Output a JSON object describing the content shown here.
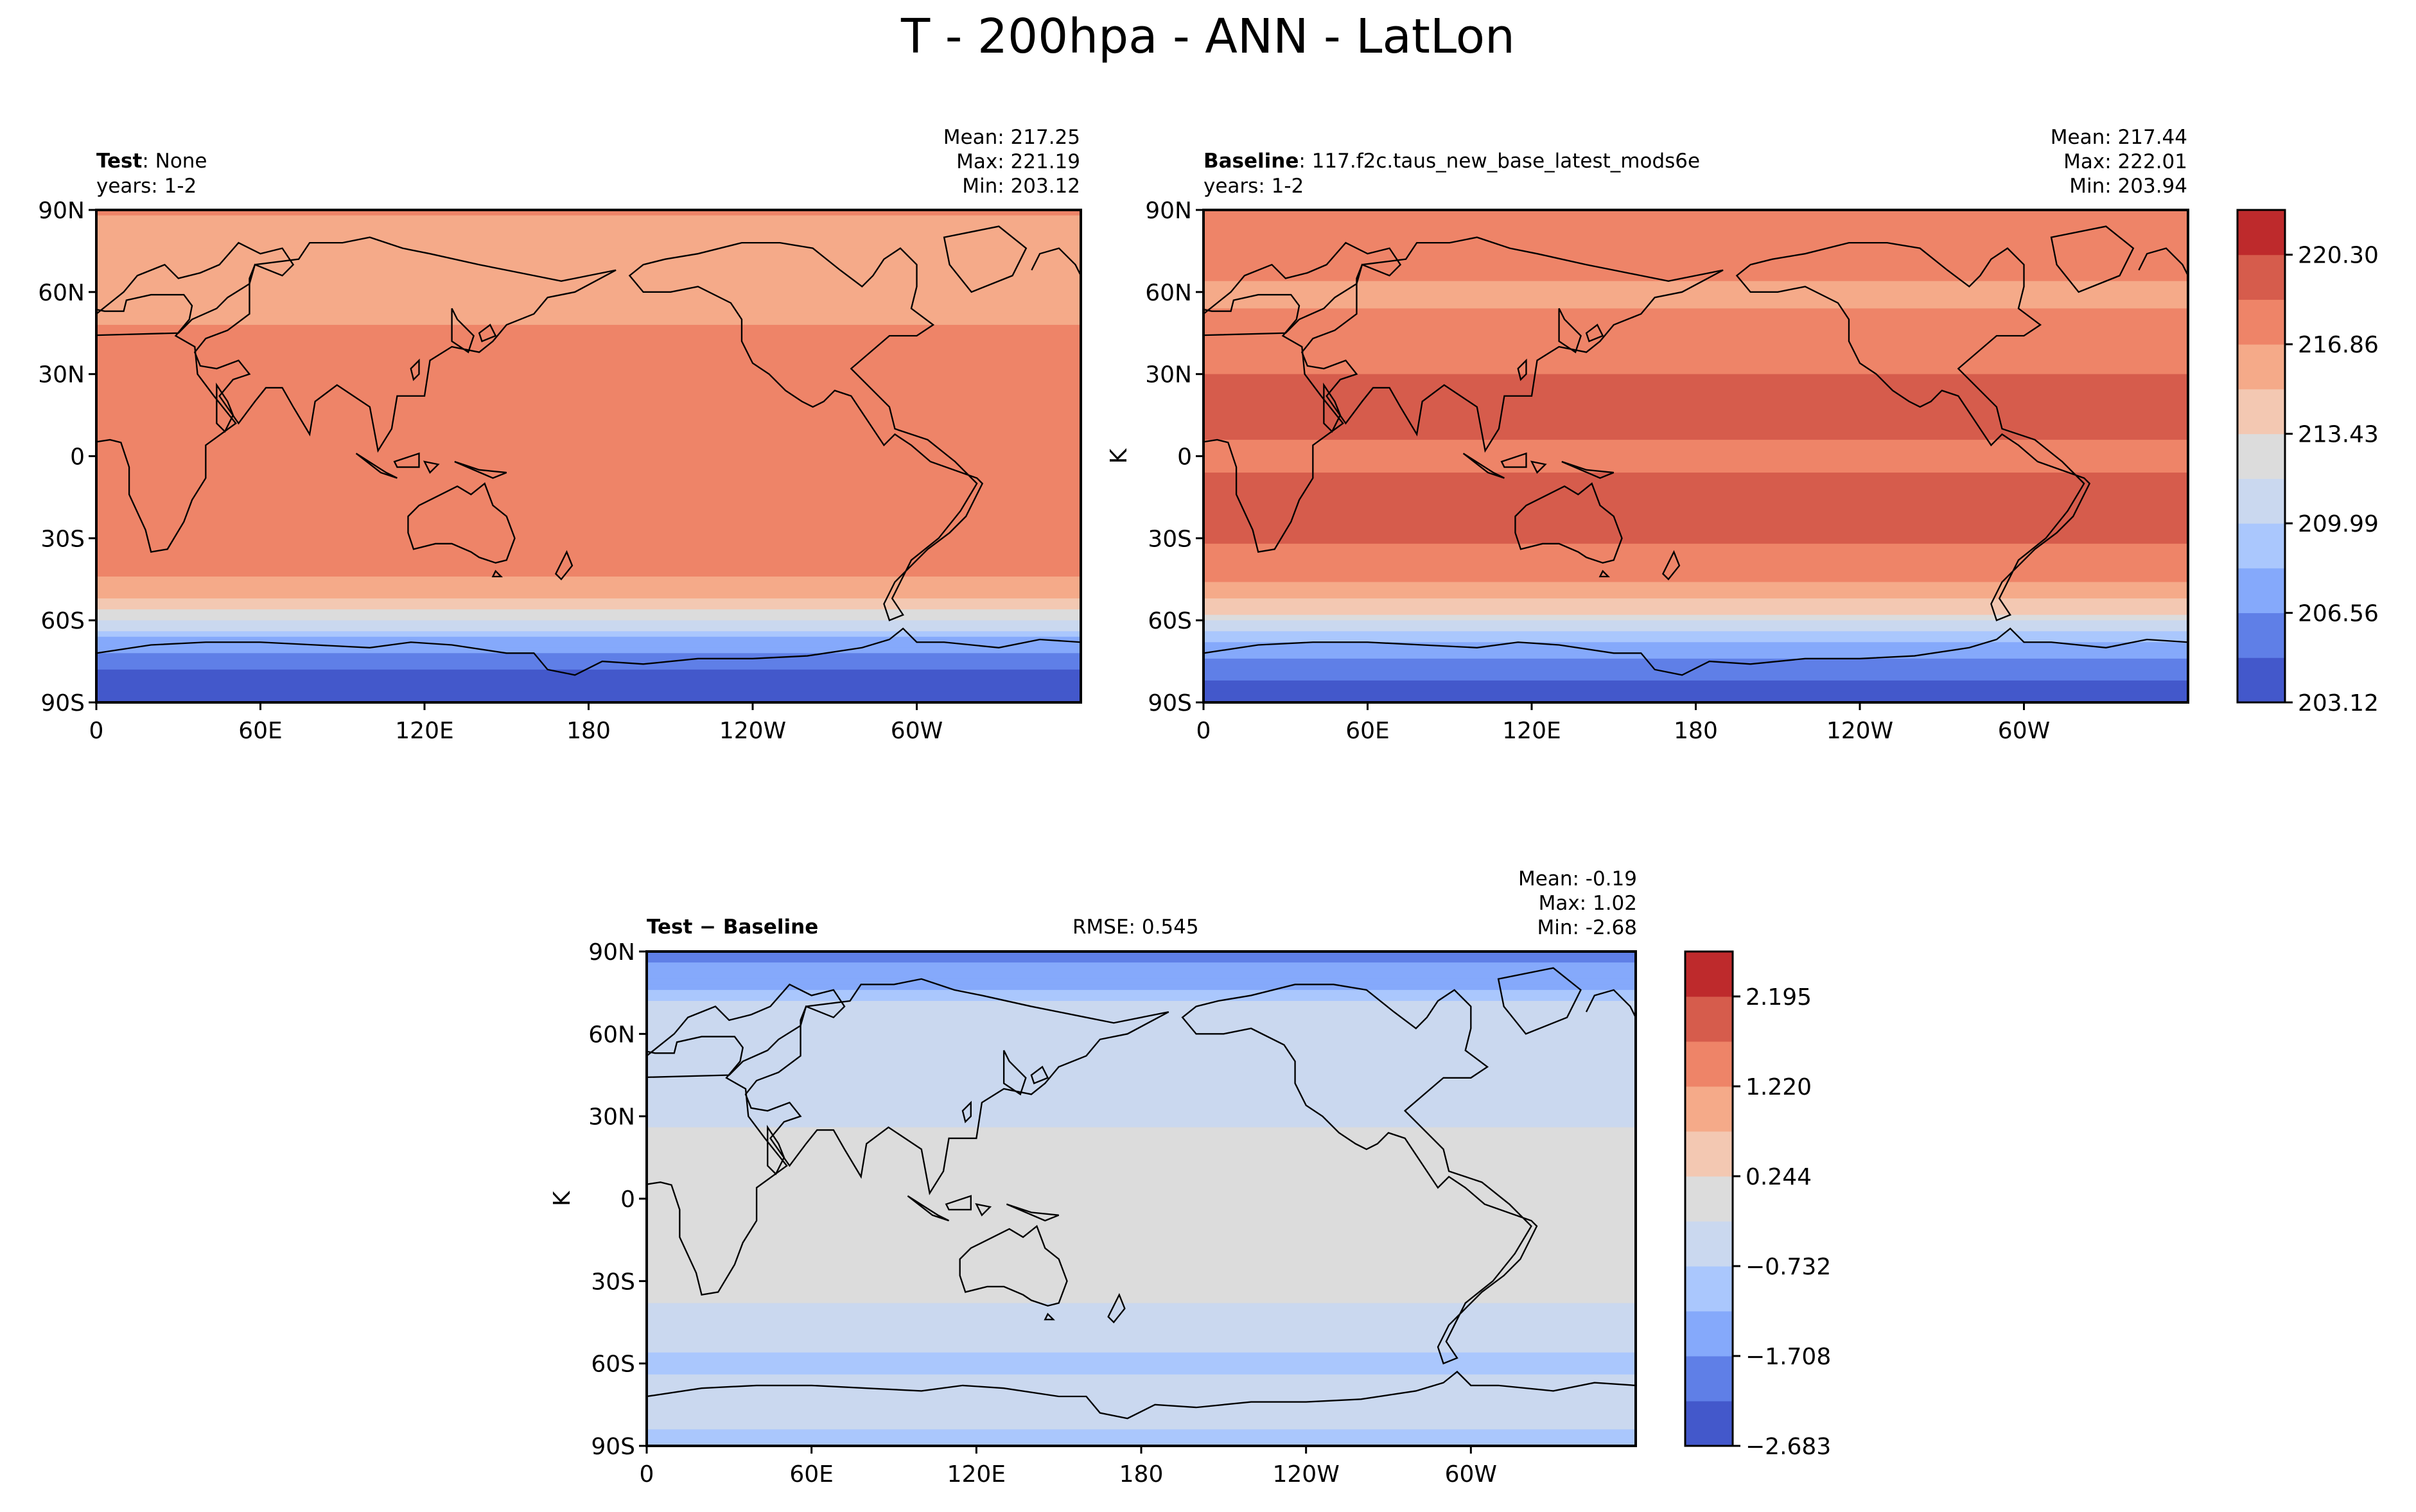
{
  "suptitle": "T - 200hpa - ANN - LatLon",
  "palette": [
    "#4358cb",
    "#5f7fe7",
    "#85a9fb",
    "#aac7fd",
    "#cad8ef",
    "#dcdcdc",
    "#f3c8b2",
    "#f5aa89",
    "#ee8468",
    "#d65c4c",
    "#be2a2c"
  ],
  "panels": {
    "test": {
      "title_bold": "Test",
      "title_rest": ": None",
      "years": "years: 1-2",
      "mean": "Mean: 217.25",
      "max": "Max: 221.19",
      "min": "Min: 203.12"
    },
    "baseline": {
      "title_bold": "Baseline",
      "title_rest": ": 117.f2c.taus_new_base_latest_mods6e",
      "years": "years: 1-2",
      "mean": "Mean: 217.44",
      "max": "Max: 222.01",
      "min": "Min: 203.94"
    },
    "diff": {
      "title_bold": "Test − Baseline",
      "rmse": "RMSE: 0.545",
      "mean": "Mean: -0.19",
      "max": "Max:  1.02",
      "min": "Min: -2.68"
    }
  },
  "chart_data": [
    {
      "type": "heatmap",
      "name": "Test",
      "xlabel": "",
      "ylabel": "",
      "x_tick_labels": [
        "0",
        "60E",
        "120E",
        "180",
        "120W",
        "60W"
      ],
      "y_tick_labels": [
        "90N",
        "60N",
        "30N",
        "0",
        "30S",
        "60S",
        "90S"
      ],
      "xlim": [
        0,
        360
      ],
      "ylim": [
        -90,
        90
      ],
      "shared_colorbar": "abs",
      "zonal_profile": [
        {
          "lat": 90,
          "value": 216.9
        },
        {
          "lat": 75,
          "value": 216.6
        },
        {
          "lat": 60,
          "value": 216.2
        },
        {
          "lat": 45,
          "value": 217.0
        },
        {
          "lat": 30,
          "value": 218.3
        },
        {
          "lat": 15,
          "value": 218.5
        },
        {
          "lat": 0,
          "value": 218.3
        },
        {
          "lat": -15,
          "value": 218.4
        },
        {
          "lat": -30,
          "value": 218.5
        },
        {
          "lat": -45,
          "value": 216.8
        },
        {
          "lat": -55,
          "value": 214.3
        },
        {
          "lat": -60,
          "value": 211.5
        },
        {
          "lat": -65,
          "value": 209.0
        },
        {
          "lat": -70,
          "value": 206.8
        },
        {
          "lat": -80,
          "value": 204.5
        },
        {
          "lat": -90,
          "value": 203.5
        }
      ]
    },
    {
      "type": "heatmap",
      "name": "Baseline",
      "xlabel": "",
      "ylabel": "K",
      "x_tick_labels": [
        "0",
        "60E",
        "120E",
        "180",
        "120W",
        "60W"
      ],
      "y_tick_labels": [
        "90N",
        "60N",
        "30N",
        "0",
        "30S",
        "60S",
        "90S"
      ],
      "xlim": [
        0,
        360
      ],
      "ylim": [
        -90,
        90
      ],
      "colorbar": {
        "levels": [
          203.12,
          204.84,
          206.56,
          208.27,
          209.99,
          211.71,
          213.43,
          215.15,
          216.86,
          218.58,
          220.3,
          222.02
        ],
        "tick_labels": [
          "203.12",
          "206.56",
          "209.99",
          "213.43",
          "216.86",
          "220.30"
        ]
      },
      "zonal_profile": [
        {
          "lat": 90,
          "value": 218.6
        },
        {
          "lat": 75,
          "value": 217.7
        },
        {
          "lat": 60,
          "value": 216.5
        },
        {
          "lat": 45,
          "value": 217.3
        },
        {
          "lat": 30,
          "value": 218.6
        },
        {
          "lat": 15,
          "value": 218.7
        },
        {
          "lat": 0,
          "value": 218.5
        },
        {
          "lat": -15,
          "value": 218.7
        },
        {
          "lat": -30,
          "value": 218.8
        },
        {
          "lat": -45,
          "value": 217.0
        },
        {
          "lat": -55,
          "value": 214.6
        },
        {
          "lat": -60,
          "value": 212.0
        },
        {
          "lat": -65,
          "value": 209.6
        },
        {
          "lat": -70,
          "value": 207.5
        },
        {
          "lat": -80,
          "value": 205.0
        },
        {
          "lat": -90,
          "value": 204.0
        }
      ]
    },
    {
      "type": "heatmap",
      "name": "Test - Baseline",
      "xlabel": "",
      "ylabel": "K",
      "x_tick_labels": [
        "0",
        "60E",
        "120E",
        "180",
        "120W",
        "60W"
      ],
      "y_tick_labels": [
        "90N",
        "60N",
        "30N",
        "0",
        "30S",
        "60S",
        "90S"
      ],
      "xlim": [
        0,
        360
      ],
      "ylim": [
        -90,
        90
      ],
      "colorbar": {
        "levels": [
          -2.683,
          -2.195,
          -1.708,
          -1.22,
          -0.732,
          -0.244,
          0.244,
          0.732,
          1.22,
          1.708,
          2.195,
          2.683
        ],
        "tick_labels": [
          "−2.683",
          "−1.708",
          "−0.732",
          "0.244",
          "1.220",
          "2.195"
        ]
      },
      "zonal_profile": [
        {
          "lat": 90,
          "value": -1.9
        },
        {
          "lat": 80,
          "value": -1.5
        },
        {
          "lat": 70,
          "value": -0.6
        },
        {
          "lat": 60,
          "value": -0.4
        },
        {
          "lat": 45,
          "value": -0.4
        },
        {
          "lat": 30,
          "value": -0.3
        },
        {
          "lat": 15,
          "value": -0.1
        },
        {
          "lat": 0,
          "value": 0.0
        },
        {
          "lat": -15,
          "value": -0.1
        },
        {
          "lat": -30,
          "value": 0.1
        },
        {
          "lat": -45,
          "value": -0.5
        },
        {
          "lat": -60,
          "value": -0.8
        },
        {
          "lat": -70,
          "value": -0.6
        },
        {
          "lat": -80,
          "value": -0.7
        },
        {
          "lat": -90,
          "value": -0.8
        }
      ]
    }
  ]
}
